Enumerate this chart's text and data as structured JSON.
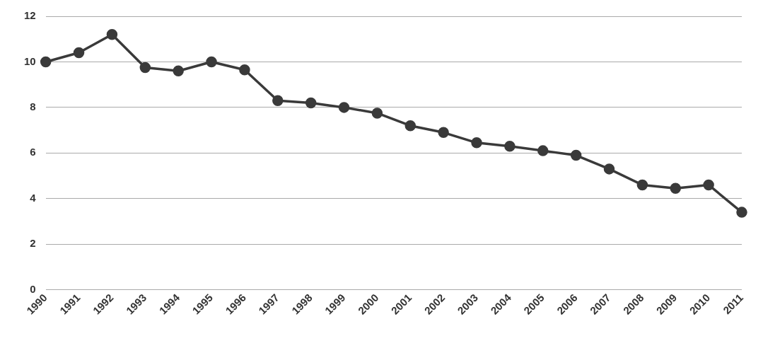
{
  "chart_data": {
    "type": "line",
    "categories": [
      "1990",
      "1991",
      "1992",
      "1993",
      "1994",
      "1995",
      "1996",
      "1997",
      "1998",
      "1999",
      "2000",
      "2001",
      "2002",
      "2003",
      "2004",
      "2005",
      "2006",
      "2007",
      "2008",
      "2009",
      "2010",
      "2011"
    ],
    "series": [
      {
        "color": "#3a3a3a",
        "values": [
          10.0,
          10.4,
          11.2,
          9.75,
          9.6,
          10.0,
          9.65,
          8.3,
          8.2,
          8.0,
          7.75,
          7.2,
          6.9,
          6.45,
          6.3,
          6.1,
          5.9,
          5.3,
          4.6,
          4.45,
          4.6,
          3.4
        ]
      }
    ],
    "ylim": [
      0,
      12
    ],
    "yticks": [
      0,
      2,
      4,
      6,
      8,
      10,
      12
    ],
    "grid": "y",
    "legend": false,
    "marker": "circle",
    "line_style": "solid"
  }
}
